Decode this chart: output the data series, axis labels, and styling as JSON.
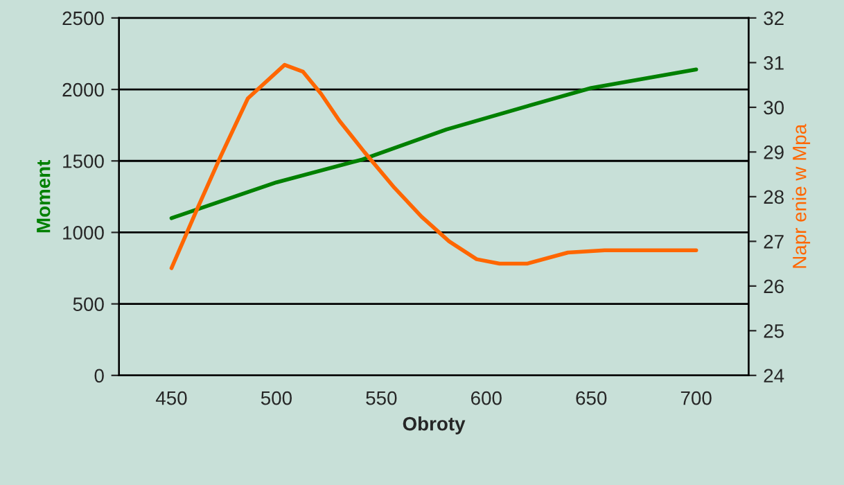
{
  "chart_data": {
    "type": "line",
    "xlabel": "Obroty",
    "ylabel": "Moment",
    "y2label": "Napr enie w Mpa",
    "xlim": [
      425,
      725
    ],
    "xticks": [
      450,
      500,
      550,
      600,
      650,
      700
    ],
    "ylim": [
      0,
      2500
    ],
    "yticks": [
      0,
      500,
      1000,
      1500,
      2000,
      2500
    ],
    "y2lim": [
      24,
      32
    ],
    "y2ticks": [
      24,
      25,
      26,
      27,
      28,
      29,
      30,
      31,
      32
    ],
    "grid": "y",
    "marker": "none",
    "line_style": "solid",
    "series": [
      {
        "color": "#008000",
        "x": [
          450,
          500,
          541,
          581,
          626,
          650,
          700
        ],
        "values": [
          1100,
          1350,
          1510,
          1720,
          1910,
          2010,
          2140
        ]
      },
      {
        "color": "#ff6600",
        "axis": "y2",
        "x": [
          450,
          462.5,
          473.4,
          486.4,
          503.9,
          512.6,
          521.3,
          530,
          541.9,
          556.2,
          569.2,
          582.3,
          595.4,
          606.3,
          619.4,
          638.9,
          656.4,
          686.9,
          700
        ],
        "values": [
          26.4,
          27.75,
          28.9,
          30.2,
          30.95,
          30.8,
          30.3,
          29.7,
          29.0,
          28.2,
          27.55,
          27.0,
          26.6,
          26.5,
          26.5,
          26.75,
          26.8,
          26.8,
          26.8
        ]
      }
    ]
  }
}
